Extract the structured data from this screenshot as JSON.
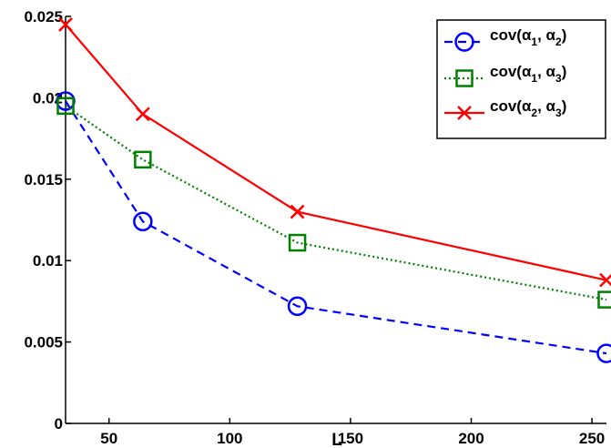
{
  "chart_data": {
    "type": "line",
    "xlabel": "L",
    "ylabel": "",
    "title": "",
    "xlim": [
      32,
      256
    ],
    "ylim": [
      0,
      0.025
    ],
    "xticks": [
      50,
      100,
      150,
      200,
      250
    ],
    "xtick_labels": [
      "50",
      "100",
      "150",
      "200",
      "250"
    ],
    "yticks": [
      0,
      0.005,
      0.01,
      0.015,
      0.02,
      0.025
    ],
    "ytick_labels": [
      "0",
      "0.005",
      "0.01",
      "0.015",
      "0.02",
      "0.025"
    ],
    "grid": false,
    "legend_position": "top-right",
    "x": [
      32,
      64,
      128,
      256
    ],
    "series": [
      {
        "name": "cov(α1, α2)",
        "legend": {
          "base": "cov(α",
          "sub1": "1",
          "mid": ", α",
          "sub2": "2",
          "end": ")"
        },
        "values": [
          0.0198,
          0.0124,
          0.0072,
          0.0043
        ],
        "color": "#0000ff",
        "line_style": "dashed",
        "marker": "circle"
      },
      {
        "name": "cov(α1, α3)",
        "legend": {
          "base": "cov(α",
          "sub1": "1",
          "mid": ", α",
          "sub2": "3",
          "end": ")"
        },
        "values": [
          0.0195,
          0.0162,
          0.0111,
          0.0076
        ],
        "color": "#008000",
        "line_style": "dotted",
        "marker": "square"
      },
      {
        "name": "cov(α2, α3)",
        "legend": {
          "base": "cov(α",
          "sub1": "2",
          "mid": ", α",
          "sub2": "3",
          "end": ")"
        },
        "values": [
          0.0245,
          0.019,
          0.013,
          0.0088
        ],
        "color": "#ff0000",
        "line_style": "solid",
        "marker": "x"
      }
    ]
  }
}
